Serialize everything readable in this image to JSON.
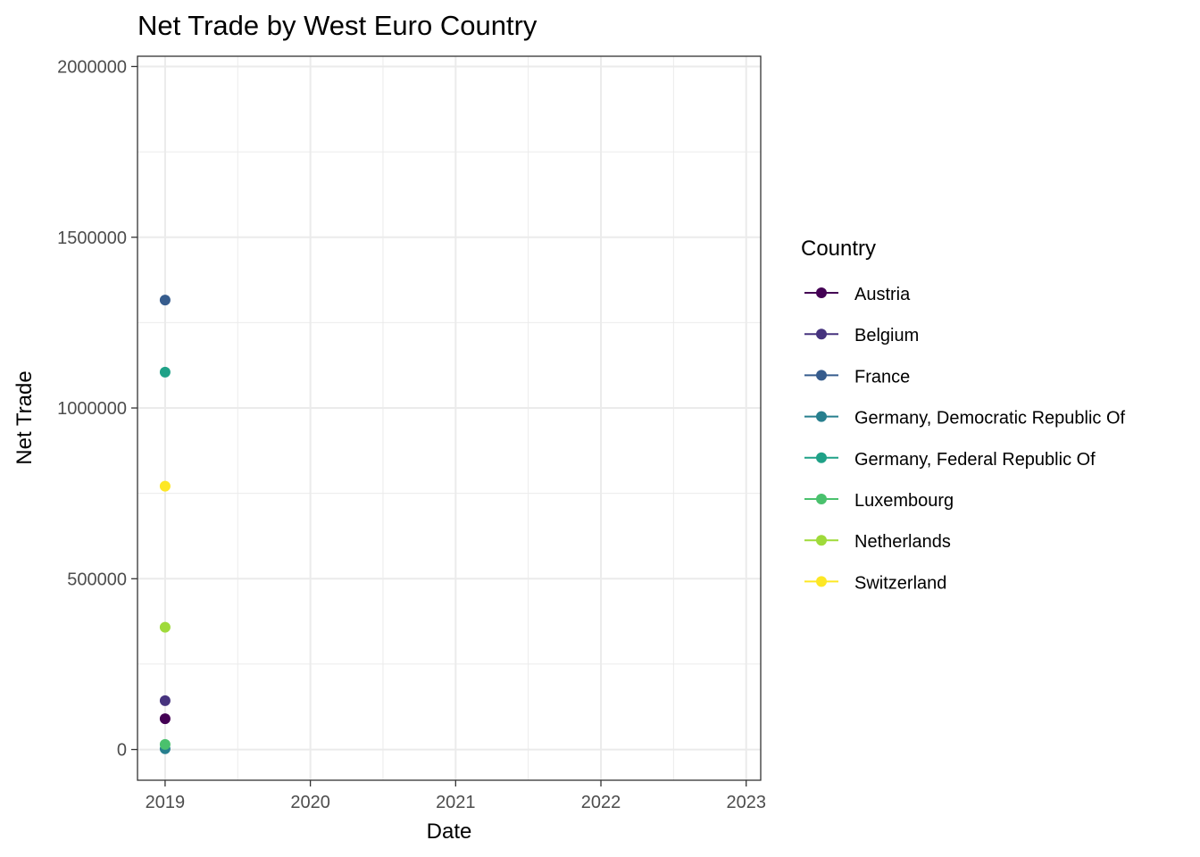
{
  "chart_data": {
    "type": "scatter",
    "title": "Net Trade by West Euro Country",
    "xlabel": "Date",
    "ylabel": "Net Trade",
    "x_ticks": [
      "2019",
      "2020",
      "2021",
      "2022",
      "2023"
    ],
    "y_ticks": [
      "0",
      "500000",
      "1000000",
      "1500000",
      "2000000"
    ],
    "xlim": [
      2018.81,
      2023.1
    ],
    "ylim": [
      -90000,
      2030000
    ],
    "grid": true,
    "legend": {
      "title": "Country",
      "placement": "right"
    },
    "series": [
      {
        "name": "Austria",
        "color": "#440154",
        "points": [
          {
            "x": 2019,
            "y": 90000
          }
        ]
      },
      {
        "name": "Belgium",
        "color": "#46337E",
        "points": [
          {
            "x": 2019,
            "y": 143000
          }
        ]
      },
      {
        "name": "France",
        "color": "#365C8D",
        "points": [
          {
            "x": 2019,
            "y": 1316000
          }
        ]
      },
      {
        "name": "Germany, Democratic Republic Of",
        "color": "#277F8E",
        "points": [
          {
            "x": 2019,
            "y": 2000
          }
        ]
      },
      {
        "name": "Germany, Federal Republic Of",
        "color": "#1FA187",
        "points": [
          {
            "x": 2019,
            "y": 1105000
          }
        ]
      },
      {
        "name": "Luxembourg",
        "color": "#4AC16D",
        "points": [
          {
            "x": 2019,
            "y": 15000
          }
        ]
      },
      {
        "name": "Netherlands",
        "color": "#9FDA3A",
        "points": [
          {
            "x": 2019,
            "y": 358000
          }
        ]
      },
      {
        "name": "Switzerland",
        "color": "#FDE725",
        "points": [
          {
            "x": 2019,
            "y": 771000
          }
        ]
      }
    ]
  }
}
